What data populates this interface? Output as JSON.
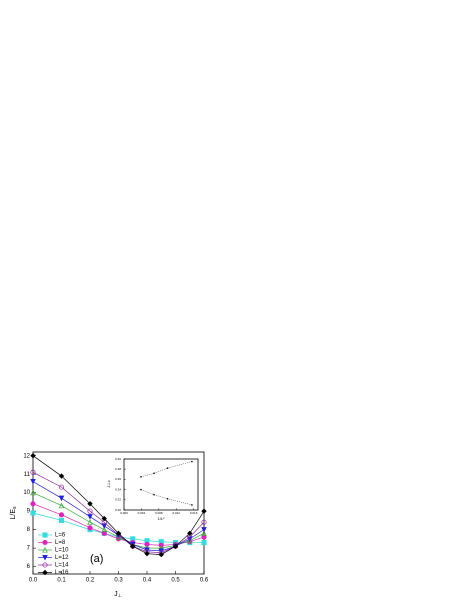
{
  "chart_data": [
    {
      "type": "line",
      "xlabel": "J",
      "xlabel_sub": "⊥",
      "ylabel": "L/E",
      "ylabel_sub": "s",
      "annotation": "(a)",
      "x": [
        0,
        0.1,
        0.2,
        0.25,
        0.3,
        0.35,
        0.4,
        0.45,
        0.5,
        0.55,
        0.6
      ],
      "xlim": [
        0,
        0.6
      ],
      "xticks": [
        {
          "value": 0,
          "label": "0.0"
        },
        0.1,
        0.2,
        0.3,
        0.4,
        0.5,
        0.6
      ],
      "ylim": [
        5.6,
        12.2
      ],
      "yticks": [
        6,
        7,
        8,
        9,
        10,
        11,
        12
      ],
      "series": [
        {
          "name": "L=6",
          "color": "#33dddd",
          "values": [
            8.9,
            8.5,
            8.0,
            7.8,
            7.6,
            7.5,
            7.4,
            7.35,
            7.3,
            7.3,
            7.3
          ]
        },
        {
          "name": "L=8",
          "color": "#e020c0",
          "values": [
            9.4,
            8.8,
            8.1,
            7.8,
            7.5,
            7.3,
            7.2,
            7.15,
            7.2,
            7.35,
            7.6
          ]
        },
        {
          "name": "L=10",
          "color": "#30b030",
          "values": [
            10.0,
            9.3,
            8.4,
            8.0,
            7.6,
            7.2,
            7.0,
            7.0,
            7.15,
            7.4,
            7.8
          ]
        },
        {
          "name": "L=12",
          "color": "#2020e0",
          "values": [
            10.6,
            9.7,
            8.7,
            8.2,
            7.7,
            7.2,
            6.9,
            6.85,
            7.1,
            7.5,
            8.0
          ]
        },
        {
          "name": "L=14",
          "color": "#9020a0",
          "values": [
            11.1,
            10.3,
            9.0,
            8.4,
            7.7,
            7.1,
            6.8,
            6.75,
            7.1,
            7.6,
            8.4
          ]
        },
        {
          "name": "L=16",
          "color": "#000000",
          "values": [
            12.0,
            10.9,
            9.4,
            8.6,
            7.8,
            7.1,
            6.7,
            6.65,
            7.1,
            7.8,
            9.0
          ]
        }
      ]
    },
    {
      "type": "scatter",
      "xlabel": "1/L²",
      "ylabel": "J⊥c",
      "xlim": [
        0,
        0.017
      ],
      "xticks": [
        {
          "value": 0,
          "label": "0.000"
        },
        {
          "value": 0.004,
          "label": "0.004"
        },
        {
          "value": 0.008,
          "label": "0.008"
        },
        {
          "value": 0.012,
          "label": "0.012"
        },
        {
          "value": 0.016,
          "label": "0.016"
        }
      ],
      "ylim": [
        0.3,
        0.4
      ],
      "yticks": [
        {
          "value": 0.3,
          "label": "0.30"
        },
        {
          "value": 0.32,
          "label": "0.32"
        },
        {
          "value": 0.34,
          "label": "0.34"
        },
        {
          "value": 0.36,
          "label": "0.36"
        },
        {
          "value": 0.38,
          "label": "0.38"
        },
        {
          "value": 0.4,
          "label": "0.40"
        }
      ],
      "series": [
        {
          "color": "#000000",
          "x": [
            0.0039,
            0.0069,
            0.01,
            0.0156
          ],
          "values": [
            0.365,
            0.372,
            0.382,
            0.395
          ]
        },
        {
          "color": "#000000",
          "x": [
            0.0039,
            0.0069,
            0.01,
            0.0156
          ],
          "values": [
            0.34,
            0.33,
            0.322,
            0.31
          ]
        }
      ]
    }
  ]
}
